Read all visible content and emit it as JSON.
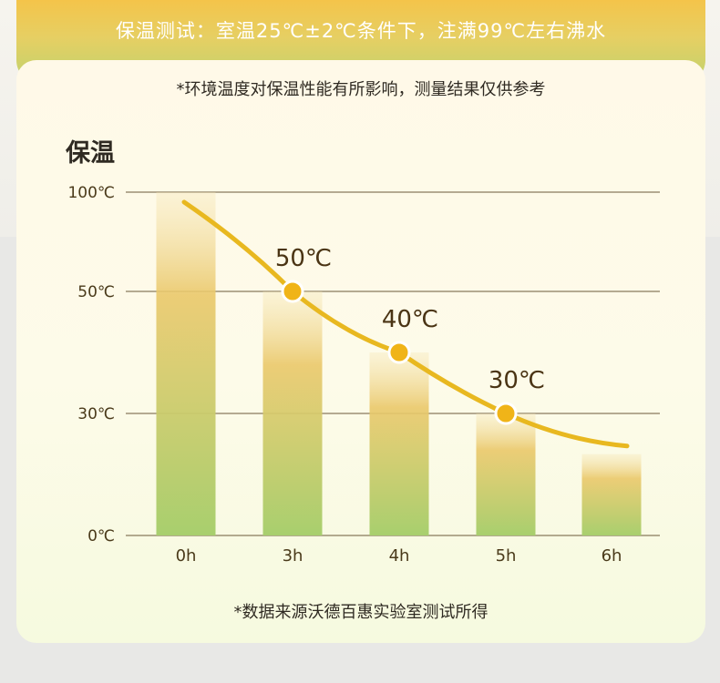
{
  "header": {
    "text": "保温测试：室温25℃±2℃条件下，注满99℃左右沸水"
  },
  "card": {
    "note_top": "*环境温度对保温性能有所影响，测量结果仅供参考",
    "note_bottom": "*数据来源沃德百惠实验室测试所得"
  },
  "colors": {
    "bar_top": "#f6e6b4",
    "bar_mid": "#eac86a",
    "bar_bottom": "#a8cf6e",
    "curve": "#e8b820",
    "point_fill": "#f0b418",
    "gridline": "#6b5a3a"
  },
  "chart_data": {
    "type": "bar",
    "title": "保温",
    "categories": [
      "0h",
      "3h",
      "4h",
      "5h",
      "6h"
    ],
    "values": [
      100,
      50,
      40,
      30,
      20
    ],
    "y_ticks": [
      {
        "value": 0,
        "label": "0℃"
      },
      {
        "value": 30,
        "label": "30℃"
      },
      {
        "value": 50,
        "label": "50℃"
      },
      {
        "value": 100,
        "label": "100℃"
      }
    ],
    "ylim": [
      0,
      100
    ],
    "grid": true,
    "curve": [
      {
        "x": "0h",
        "y": 95
      },
      {
        "x": "3h",
        "y": 50,
        "label": "50℃"
      },
      {
        "x": "4h",
        "y": 40,
        "label": "40℃"
      },
      {
        "x": "5h",
        "y": 30,
        "label": "30℃"
      },
      {
        "x": "6h",
        "y": 22
      }
    ]
  }
}
